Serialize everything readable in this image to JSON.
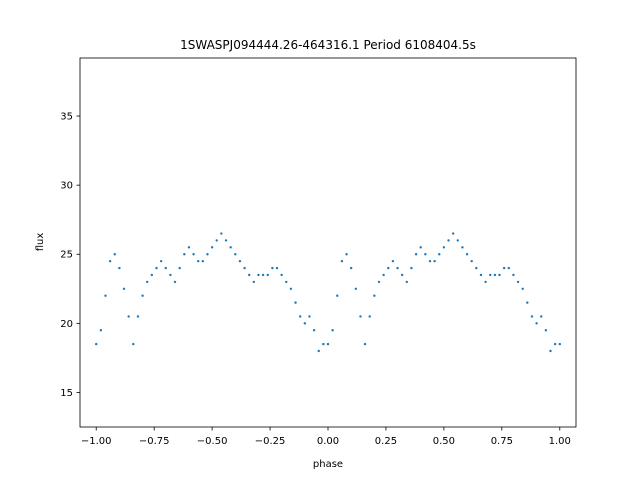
{
  "chart_data": {
    "type": "scatter",
    "title": "1SWASPJ094444.26-464316.1 Period 6108404.5s",
    "xlabel": "phase",
    "ylabel": "flux",
    "xlim": [
      -1.07,
      1.07
    ],
    "ylim": [
      12.5,
      39.2
    ],
    "xticks": [
      -1.0,
      -0.75,
      -0.5,
      -0.25,
      0.0,
      0.25,
      0.5,
      0.75,
      1.0
    ],
    "xtick_labels": [
      "−1.00",
      "−0.75",
      "−0.50",
      "−0.25",
      "0.00",
      "0.25",
      "0.50",
      "0.75",
      "1.00"
    ],
    "yticks": [
      15,
      20,
      25,
      30,
      35
    ],
    "ytick_labels": [
      "15",
      "20",
      "25",
      "30",
      "35"
    ],
    "grid": false,
    "marker_color": "#1f77b4",
    "series": [
      {
        "points": [
          [
            -1.0,
            18.5
          ],
          [
            -0.98,
            19.5
          ],
          [
            -0.96,
            22.0
          ],
          [
            -0.94,
            24.5
          ],
          [
            -0.92,
            25.0
          ],
          [
            -0.9,
            24.0
          ],
          [
            -0.88,
            22.5
          ],
          [
            -0.86,
            20.5
          ],
          [
            -0.84,
            18.5
          ],
          [
            -0.82,
            20.5
          ],
          [
            -0.8,
            22.0
          ],
          [
            -0.78,
            23.0
          ],
          [
            -0.76,
            23.5
          ],
          [
            -0.74,
            24.0
          ],
          [
            -0.72,
            24.5
          ],
          [
            -0.7,
            24.0
          ],
          [
            -0.68,
            23.5
          ],
          [
            -0.66,
            23.0
          ],
          [
            -0.64,
            24.0
          ],
          [
            -0.62,
            25.0
          ],
          [
            -0.6,
            25.5
          ],
          [
            -0.58,
            25.0
          ],
          [
            -0.56,
            24.5
          ],
          [
            -0.54,
            24.5
          ],
          [
            -0.52,
            25.0
          ],
          [
            -0.5,
            25.5
          ],
          [
            -0.48,
            26.0
          ],
          [
            -0.46,
            26.5
          ],
          [
            -0.44,
            26.0
          ],
          [
            -0.42,
            25.5
          ],
          [
            -0.4,
            25.0
          ],
          [
            -0.38,
            24.5
          ],
          [
            -0.36,
            24.0
          ],
          [
            -0.34,
            23.5
          ],
          [
            -0.32,
            23.0
          ],
          [
            -0.3,
            23.5
          ],
          [
            -0.28,
            23.5
          ],
          [
            -0.26,
            23.5
          ],
          [
            -0.24,
            24.0
          ],
          [
            -0.22,
            24.0
          ],
          [
            -0.2,
            23.5
          ],
          [
            -0.18,
            23.0
          ],
          [
            -0.16,
            22.5
          ],
          [
            -0.14,
            21.5
          ],
          [
            -0.12,
            20.5
          ],
          [
            -0.1,
            20.0
          ],
          [
            -0.08,
            20.5
          ],
          [
            -0.06,
            19.5
          ],
          [
            -0.04,
            18.0
          ],
          [
            -0.02,
            18.5
          ],
          [
            0.0,
            18.5
          ],
          [
            0.02,
            19.5
          ],
          [
            0.04,
            22.0
          ],
          [
            0.06,
            24.5
          ],
          [
            0.08,
            25.0
          ],
          [
            0.1,
            24.0
          ],
          [
            0.12,
            22.5
          ],
          [
            0.14,
            20.5
          ],
          [
            0.16,
            18.5
          ],
          [
            0.18,
            20.5
          ],
          [
            0.2,
            22.0
          ],
          [
            0.22,
            23.0
          ],
          [
            0.24,
            23.5
          ],
          [
            0.26,
            24.0
          ],
          [
            0.28,
            24.5
          ],
          [
            0.3,
            24.0
          ],
          [
            0.32,
            23.5
          ],
          [
            0.34,
            23.0
          ],
          [
            0.36,
            24.0
          ],
          [
            0.38,
            25.0
          ],
          [
            0.4,
            25.5
          ],
          [
            0.42,
            25.0
          ],
          [
            0.44,
            24.5
          ],
          [
            0.46,
            24.5
          ],
          [
            0.48,
            25.0
          ],
          [
            0.5,
            25.5
          ],
          [
            0.52,
            26.0
          ],
          [
            0.54,
            26.5
          ],
          [
            0.56,
            26.0
          ],
          [
            0.58,
            25.5
          ],
          [
            0.6,
            25.0
          ],
          [
            0.62,
            24.5
          ],
          [
            0.64,
            24.0
          ],
          [
            0.66,
            23.5
          ],
          [
            0.68,
            23.0
          ],
          [
            0.7,
            23.5
          ],
          [
            0.72,
            23.5
          ],
          [
            0.74,
            23.5
          ],
          [
            0.76,
            24.0
          ],
          [
            0.78,
            24.0
          ],
          [
            0.8,
            23.5
          ],
          [
            0.82,
            23.0
          ],
          [
            0.84,
            22.5
          ],
          [
            0.86,
            21.5
          ],
          [
            0.88,
            20.5
          ],
          [
            0.9,
            20.0
          ],
          [
            0.92,
            20.5
          ],
          [
            0.94,
            19.5
          ],
          [
            0.96,
            18.0
          ],
          [
            0.98,
            18.5
          ],
          [
            1.0,
            18.5
          ]
        ]
      }
    ]
  }
}
